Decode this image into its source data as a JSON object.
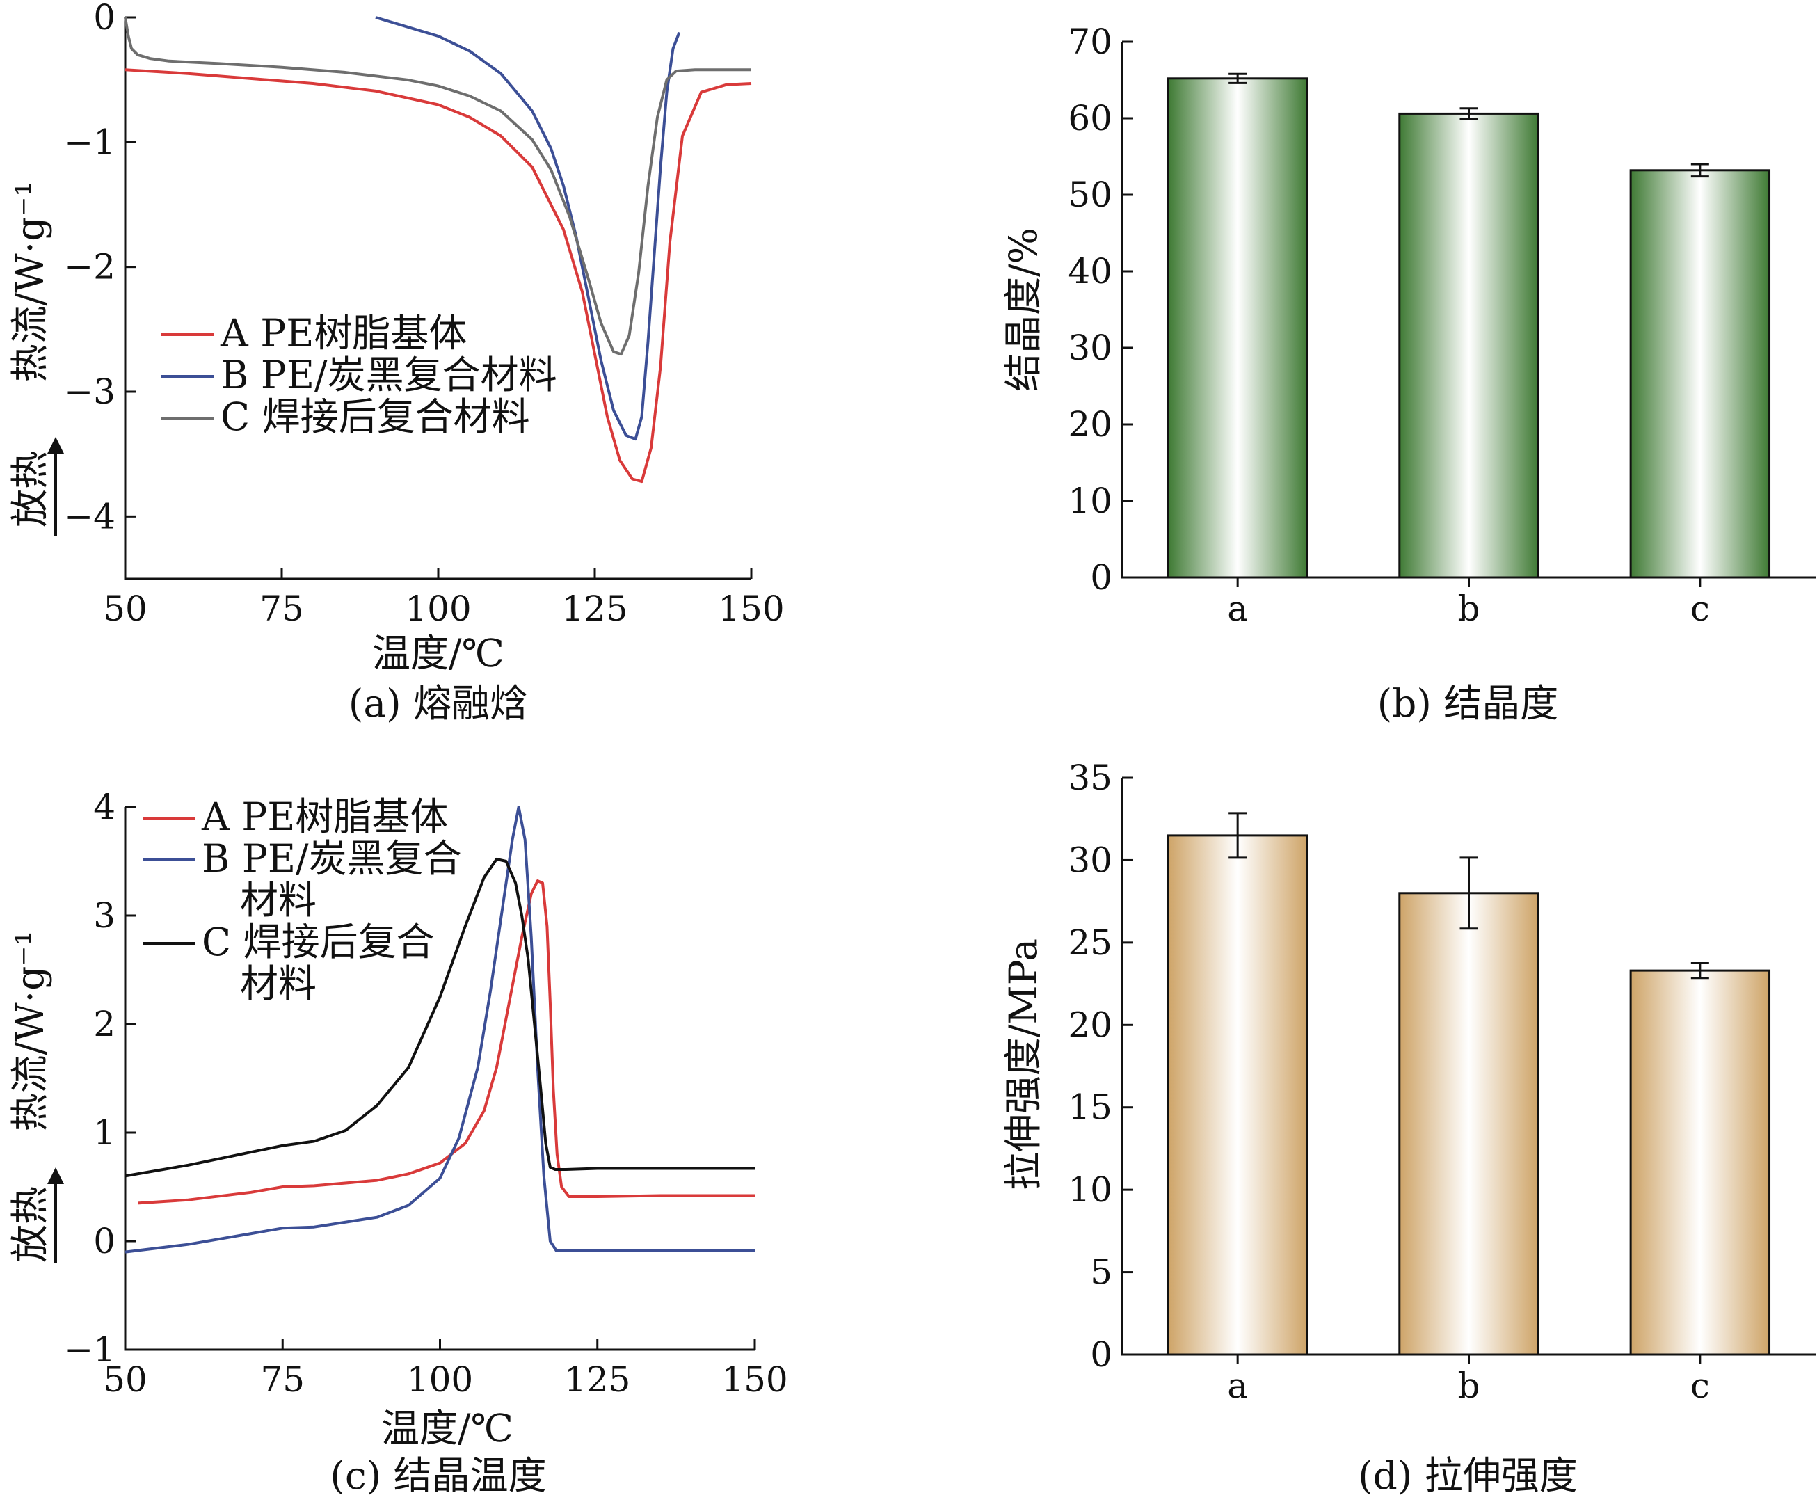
{
  "annotations": {
    "exotherm": "放热"
  },
  "chart_data": [
    {
      "id": "a",
      "type": "line",
      "caption": "(a) 熔融焓",
      "xlabel": "温度/℃",
      "ylabel": "热流/W·g⁻¹",
      "xlim": [
        50,
        150
      ],
      "ylim": [
        -4.5,
        0
      ],
      "xticks": [
        50,
        75,
        100,
        125,
        150
      ],
      "yticks": [
        0,
        -1,
        -2,
        -3,
        -4
      ],
      "legend_position": "left-center",
      "series": [
        {
          "name": "A PE树脂基体",
          "color": "#d93a3a",
          "x": [
            50,
            60,
            70,
            80,
            90,
            100,
            105,
            110,
            115,
            120,
            123,
            125,
            127,
            129,
            131,
            132.5,
            134,
            135.5,
            137,
            139,
            142,
            146,
            150
          ],
          "y": [
            -0.42,
            -0.45,
            -0.49,
            -0.53,
            -0.59,
            -0.7,
            -0.8,
            -0.95,
            -1.2,
            -1.7,
            -2.2,
            -2.7,
            -3.2,
            -3.55,
            -3.7,
            -3.72,
            -3.45,
            -2.8,
            -1.8,
            -0.95,
            -0.6,
            -0.54,
            -0.53
          ]
        },
        {
          "name": "B PE/炭黑复合材料",
          "color": "#3c4f96",
          "x": [
            90,
            100,
            105,
            110,
            115,
            118,
            120,
            122,
            124,
            126,
            128,
            130,
            131.5,
            132.5,
            133.5,
            134.5,
            135.5,
            136.5,
            137.5,
            138.5
          ],
          "y": [
            0,
            -0.15,
            -0.27,
            -0.45,
            -0.75,
            -1.05,
            -1.35,
            -1.75,
            -2.25,
            -2.75,
            -3.15,
            -3.35,
            -3.38,
            -3.2,
            -2.6,
            -1.9,
            -1.2,
            -0.6,
            -0.25,
            -0.12
          ]
        },
        {
          "name": "C 焊接后复合材料",
          "color": "#6e6e6e",
          "x": [
            50,
            50.5,
            51,
            52,
            54,
            57,
            65,
            75,
            85,
            95,
            100,
            105,
            110,
            115,
            118,
            121,
            124,
            126,
            128,
            129.2,
            130.5,
            132,
            133.5,
            135,
            136.5,
            138,
            141,
            145,
            150
          ],
          "y": [
            0,
            -0.15,
            -0.25,
            -0.3,
            -0.33,
            -0.35,
            -0.37,
            -0.4,
            -0.44,
            -0.5,
            -0.55,
            -0.63,
            -0.75,
            -0.98,
            -1.22,
            -1.6,
            -2.1,
            -2.45,
            -2.68,
            -2.7,
            -2.55,
            -2.05,
            -1.35,
            -0.8,
            -0.5,
            -0.43,
            -0.42,
            -0.42,
            -0.42
          ]
        }
      ]
    },
    {
      "id": "b",
      "type": "bar",
      "caption": "(b) 结晶度",
      "ylabel": "结晶度/%",
      "ylim": [
        0,
        70
      ],
      "yticks": [
        0,
        10,
        20,
        30,
        40,
        50,
        60,
        70
      ],
      "categories": [
        "a",
        "b",
        "c"
      ],
      "values": [
        65.2,
        60.6,
        53.2
      ],
      "errors": [
        0.6,
        0.7,
        0.8
      ],
      "color": "#3f7a34"
    },
    {
      "id": "c",
      "type": "line",
      "caption": "(c) 结晶温度",
      "xlabel": "温度/℃",
      "ylabel": "热流/W·g⁻¹",
      "xlim": [
        50,
        150
      ],
      "ylim": [
        -1,
        4
      ],
      "xticks": [
        50,
        75,
        100,
        125,
        150
      ],
      "yticks": [
        -1,
        0,
        1,
        2,
        3,
        4
      ],
      "legend_position": "top-left",
      "series": [
        {
          "name": "A PE树脂基体",
          "legend_lines": [
            "A PE树脂基体"
          ],
          "color": "#d93a3a",
          "x": [
            52,
            60,
            70,
            75,
            80,
            90,
            95,
            100,
            104,
            107,
            109,
            111,
            113,
            114.5,
            115.5,
            116.3,
            117,
            117.5,
            118,
            118.6,
            119.3,
            120.5,
            125,
            135,
            150
          ],
          "y": [
            0.35,
            0.38,
            0.45,
            0.5,
            0.51,
            0.56,
            0.62,
            0.72,
            0.9,
            1.2,
            1.6,
            2.2,
            2.8,
            3.2,
            3.32,
            3.3,
            2.9,
            2.2,
            1.4,
            0.8,
            0.5,
            0.41,
            0.41,
            0.42,
            0.42
          ]
        },
        {
          "name": "B PE/炭黑复合材料",
          "legend_lines": [
            "B PE/炭黑复合",
            "材料"
          ],
          "color": "#3c4f96",
          "x": [
            50,
            60,
            70,
            75,
            80,
            90,
            95,
            100,
            103,
            106,
            108,
            110,
            111.5,
            112.5,
            113.5,
            114.5,
            115.5,
            116.5,
            117.5,
            118.5,
            120,
            125,
            140,
            150
          ],
          "y": [
            -0.1,
            -0.03,
            0.07,
            0.12,
            0.13,
            0.22,
            0.33,
            0.58,
            0.95,
            1.6,
            2.3,
            3.1,
            3.7,
            4.0,
            3.7,
            2.8,
            1.6,
            0.6,
            0.0,
            -0.09,
            -0.09,
            -0.09,
            -0.09,
            -0.09
          ]
        },
        {
          "name": "C 焊接后复合材料",
          "legend_lines": [
            "C 焊接后复合",
            "材料"
          ],
          "color": "#111111",
          "x": [
            50,
            60,
            70,
            75,
            80,
            85,
            90,
            95,
            100,
            104,
            107,
            109,
            110.5,
            112,
            113,
            114,
            115,
            116,
            116.8,
            117.5,
            118.3,
            120,
            125,
            135,
            150
          ],
          "y": [
            0.6,
            0.7,
            0.82,
            0.88,
            0.92,
            1.02,
            1.25,
            1.6,
            2.25,
            2.9,
            3.35,
            3.52,
            3.5,
            3.3,
            3.0,
            2.6,
            2.0,
            1.4,
            0.9,
            0.68,
            0.66,
            0.66,
            0.67,
            0.67,
            0.67
          ]
        }
      ]
    },
    {
      "id": "d",
      "type": "bar",
      "caption": "(d) 拉伸强度",
      "ylabel": "拉伸强度/MPa",
      "ylim": [
        0,
        35
      ],
      "yticks": [
        0,
        5,
        10,
        15,
        20,
        25,
        30,
        35
      ],
      "categories": [
        "a",
        "b",
        "c"
      ],
      "values": [
        31.5,
        28.0,
        23.3
      ],
      "errors": [
        1.35,
        2.15,
        0.45
      ],
      "color": "#e0b271"
    }
  ]
}
